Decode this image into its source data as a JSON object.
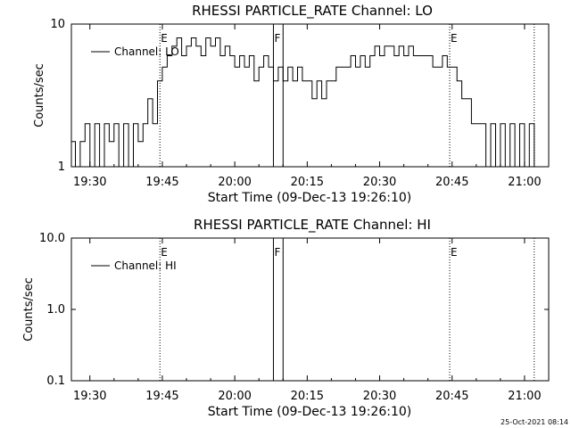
{
  "footer_timestamp": "25-Oct-2021 08:14",
  "chart_data": [
    {
      "type": "line",
      "title": "RHESSI PARTICLE_RATE Channel: LO",
      "xlabel": "Start Time (09-Dec-13 19:26:10)",
      "ylabel": "Counts/sec",
      "y_scale": "log",
      "ylim": [
        1,
        10
      ],
      "y_ticks": [
        "1",
        "10"
      ],
      "x_ticks": [
        "19:30",
        "19:45",
        "20:00",
        "20:15",
        "20:30",
        "20:45",
        "21:00"
      ],
      "legend": {
        "label": "Channel: LO",
        "placement": "top-left"
      },
      "markers": [
        {
          "label": "E",
          "time": "19:44:30",
          "style": "dotted"
        },
        {
          "label": "F",
          "time": "20:08:00",
          "style": "solid"
        },
        {
          "label": "",
          "time": "20:10:00",
          "style": "solid"
        },
        {
          "label": "E",
          "time": "20:44:30",
          "style": "dotted"
        },
        {
          "label": "",
          "time": "21:02:00",
          "style": "dotted"
        }
      ],
      "series": [
        {
          "name": "Channel: LO",
          "x": [
            "19:26:10",
            "19:27:00",
            "19:28:00",
            "19:29:00",
            "19:30:00",
            "19:31:00",
            "19:32:00",
            "19:33:00",
            "19:34:00",
            "19:35:00",
            "19:36:00",
            "19:37:00",
            "19:38:00",
            "19:39:00",
            "19:40:00",
            "19:41:00",
            "19:42:00",
            "19:43:00",
            "19:44:00",
            "19:45:00",
            "19:46:00",
            "19:47:00",
            "19:48:00",
            "19:49:00",
            "19:50:00",
            "19:51:00",
            "19:52:00",
            "19:53:00",
            "19:54:00",
            "19:55:00",
            "19:56:00",
            "19:57:00",
            "19:58:00",
            "19:59:00",
            "20:00:00",
            "20:01:00",
            "20:02:00",
            "20:03:00",
            "20:04:00",
            "20:05:00",
            "20:06:00",
            "20:07:00",
            "20:08:00",
            "20:09:00",
            "20:10:00",
            "20:11:00",
            "20:12:00",
            "20:13:00",
            "20:14:00",
            "20:15:00",
            "20:16:00",
            "20:17:00",
            "20:18:00",
            "20:19:00",
            "20:20:00",
            "20:21:00",
            "20:22:00",
            "20:23:00",
            "20:24:00",
            "20:25:00",
            "20:26:00",
            "20:27:00",
            "20:28:00",
            "20:29:00",
            "20:30:00",
            "20:31:00",
            "20:32:00",
            "20:33:00",
            "20:34:00",
            "20:35:00",
            "20:36:00",
            "20:37:00",
            "20:38:00",
            "20:39:00",
            "20:40:00",
            "20:41:00",
            "20:42:00",
            "20:43:00",
            "20:44:00",
            "20:45:00",
            "20:46:00",
            "20:47:00",
            "20:48:00",
            "20:49:00",
            "20:50:00",
            "20:51:00",
            "20:52:00",
            "20:53:00",
            "20:54:00",
            "20:55:00",
            "20:56:00",
            "20:57:00",
            "20:58:00",
            "20:59:00",
            "21:00:00",
            "21:01:00",
            "21:02:00"
          ],
          "y": [
            1.5,
            1,
            1.5,
            2,
            1,
            2,
            1,
            2,
            1.5,
            2,
            1,
            2,
            1,
            2,
            1.5,
            2,
            3,
            2,
            4,
            5,
            6,
            7,
            8,
            6,
            7,
            8,
            7,
            6,
            8,
            7,
            8,
            6,
            7,
            6,
            5,
            6,
            5,
            6,
            4,
            5,
            6,
            5,
            4,
            5,
            4,
            5,
            4,
            5,
            4,
            4,
            3,
            4,
            3,
            4,
            4,
            5,
            5,
            5,
            6,
            5,
            6,
            5,
            6,
            7,
            6,
            7,
            7,
            6,
            7,
            6,
            7,
            6,
            6,
            6,
            6,
            5,
            5,
            6,
            5,
            5,
            4,
            3,
            3,
            2,
            2,
            2,
            1,
            2,
            1,
            2,
            1,
            2,
            1,
            2,
            1,
            2,
            1
          ]
        }
      ]
    },
    {
      "type": "line",
      "title": "RHESSI PARTICLE_RATE Channel: HI",
      "xlabel": "Start Time (09-Dec-13 19:26:10)",
      "ylabel": "Counts/sec",
      "y_scale": "log",
      "ylim": [
        0.1,
        10
      ],
      "y_ticks": [
        "10.0",
        "1.0",
        "0.1"
      ],
      "x_ticks": [
        "19:30",
        "19:45",
        "20:00",
        "20:15",
        "20:30",
        "20:45",
        "21:00"
      ],
      "legend": {
        "label": "Channel: HI",
        "placement": "top-left"
      },
      "markers": [
        {
          "label": "E",
          "time": "19:44:30",
          "style": "dotted"
        },
        {
          "label": "F",
          "time": "20:08:00",
          "style": "solid"
        },
        {
          "label": "",
          "time": "20:10:00",
          "style": "solid"
        },
        {
          "label": "E",
          "time": "20:44:30",
          "style": "dotted"
        },
        {
          "label": "",
          "time": "21:02:00",
          "style": "dotted"
        }
      ],
      "series": [
        {
          "name": "Channel: HI",
          "x": [],
          "y": []
        }
      ]
    }
  ]
}
